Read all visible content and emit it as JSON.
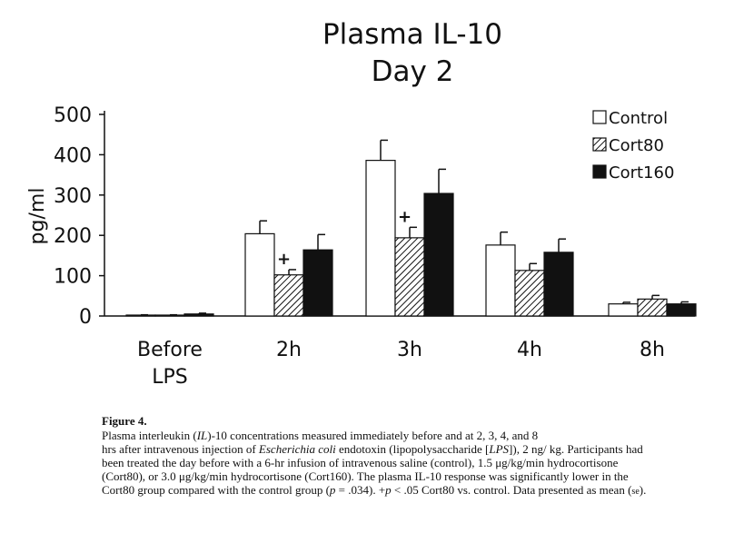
{
  "chart_data": {
    "type": "bar",
    "title_lines": [
      "Plasma IL-10",
      "Day 2"
    ],
    "ylabel": "pg/ml",
    "ylim": [
      0,
      500
    ],
    "yticks": [
      0,
      100,
      200,
      300,
      400,
      500
    ],
    "categories": [
      [
        "Before",
        "LPS"
      ],
      [
        "2h"
      ],
      [
        "3h"
      ],
      [
        "4h"
      ],
      [
        "8h"
      ]
    ],
    "series": [
      {
        "name": "Control",
        "fill": "white",
        "values": [
          2,
          204,
          386,
          176,
          30
        ],
        "errors": [
          1,
          32,
          50,
          32,
          4
        ]
      },
      {
        "name": "Cort80",
        "fill": "hatch",
        "values": [
          2,
          102,
          194,
          113,
          42
        ],
        "errors": [
          1,
          13,
          26,
          17,
          9
        ]
      },
      {
        "name": "Cort160",
        "fill": "black",
        "values": [
          5,
          164,
          304,
          158,
          30
        ],
        "errors": [
          2,
          38,
          60,
          33,
          5
        ]
      }
    ],
    "annotations": [
      {
        "text": "+",
        "category_index": 1,
        "series_index": 1
      },
      {
        "text": "+",
        "category_index": 2,
        "series_index": 1
      }
    ],
    "legend_position": "top-right"
  },
  "caption": {
    "label": "Figure 4.",
    "line1_a": "Plasma interleukin (",
    "line1_il": "IL",
    "line1_b": ")-10 concentrations measured immediately before and at 2, 3, 4, and 8",
    "line2_a": "hrs after intravenous injection of ",
    "line2_ecoli": "Escherichia coli",
    "line2_b": " endotoxin (lipopolysaccharide [",
    "line2_lps": "LPS",
    "line2_c": "]), 2 ng/",
    "rest": "kg. Participants had been treated the day before with a 6-hr infusion of intravenous saline (control), 1.5 μg/kg/min hydrocortisone (Cort80), or 3.0 μg/kg/min hydrocortisone (Cort160). The plasma IL-10 response was significantly lower in the Cort80 group compared with the control group (",
    "p_italic": "p",
    "p_rest": " = .034). +",
    "p2_italic": "p",
    "end_a": " < .05 Cort80 vs. control. Data presented as mean (",
    "se": "se",
    "end_b": ")."
  }
}
